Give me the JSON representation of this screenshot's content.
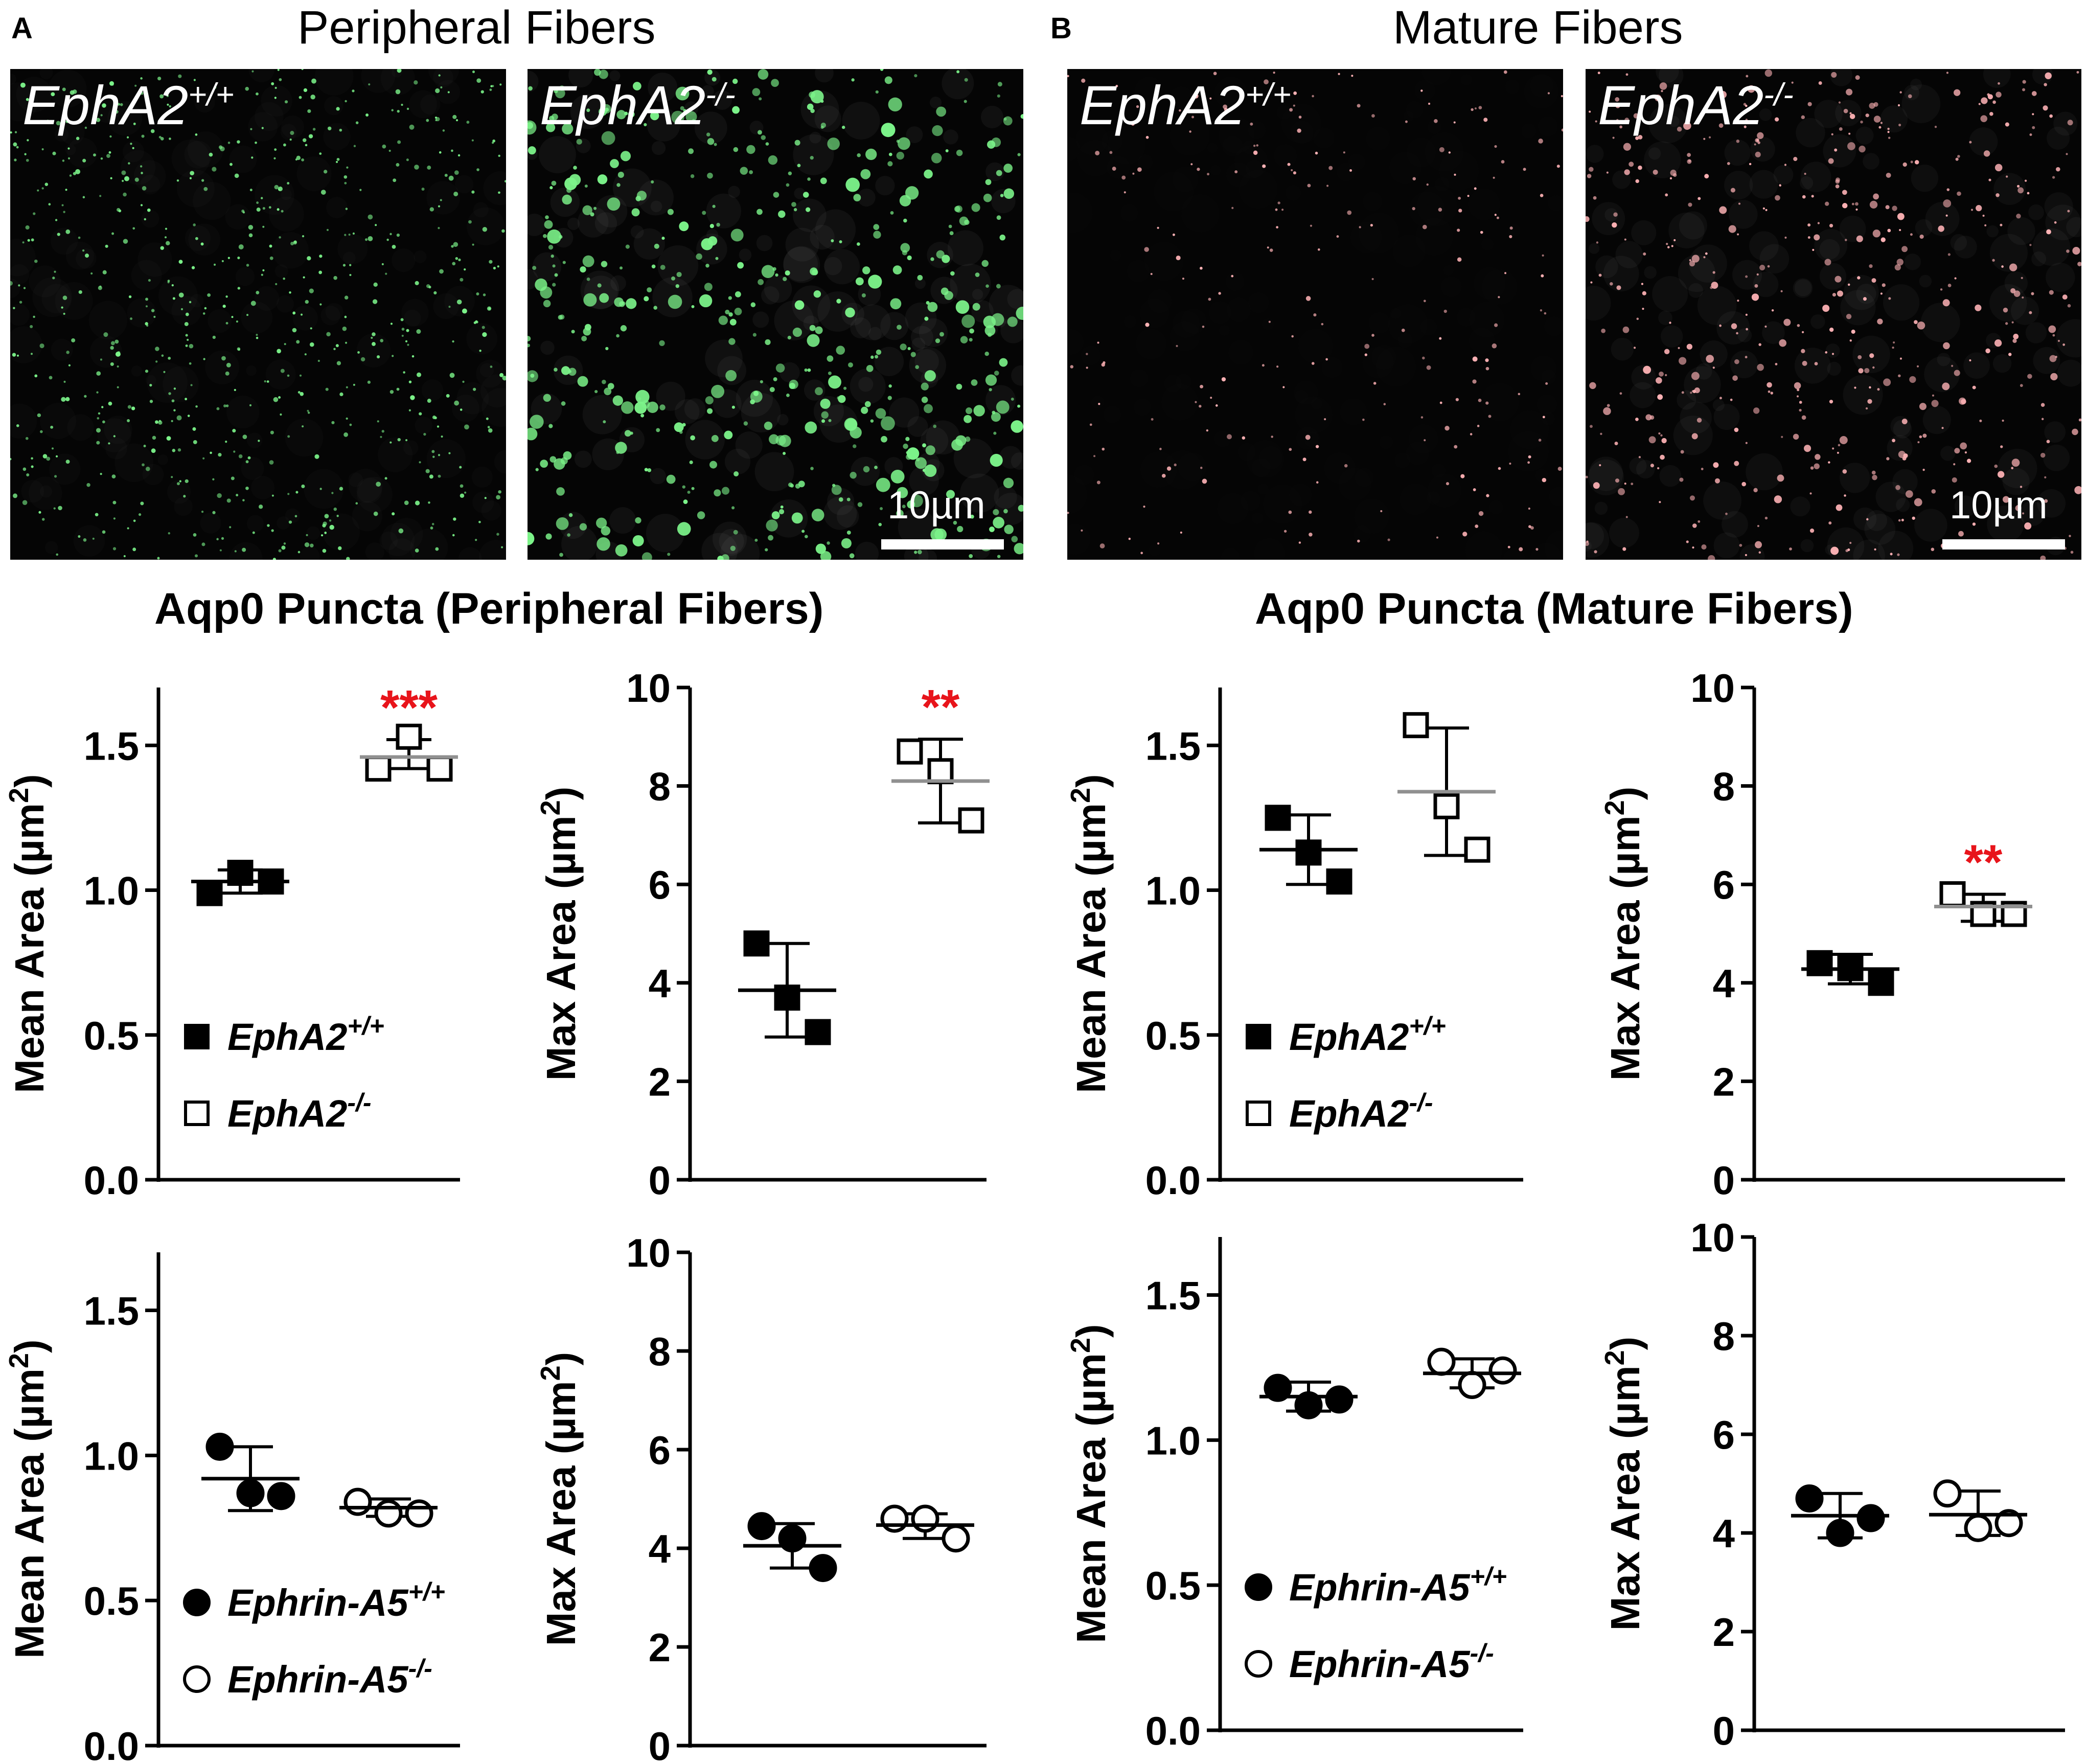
{
  "panel_A": {
    "letter": "A",
    "title": "Peripheral Fibers",
    "image_left": {
      "label": "EphA2",
      "label_sup": "+/+",
      "dot_color": "#7CF48A"
    },
    "image_right": {
      "label": "EphA2",
      "label_sup": "-/-",
      "dot_color": "#7CF48A",
      "scale_label": "10µm"
    },
    "section_title": "Aqp0 Puncta (Peripheral Fibers)"
  },
  "panel_B": {
    "letter": "B",
    "title": "Mature Fibers",
    "image_left": {
      "label": "EphA2",
      "label_sup": "+/+",
      "dot_color": "#FFB3B6"
    },
    "image_right": {
      "label": "EphA2",
      "label_sup": "-/-",
      "dot_color": "#FFB3B6",
      "scale_label": "10µm"
    },
    "section_title": "Aqp0 Puncta (Mature Fibers)"
  },
  "colors": {
    "significance": "#E8141B",
    "mean_gray": "#909090",
    "axis": "#000000"
  },
  "chart_data": [
    {
      "id": "A-EphA2-mean",
      "type": "scatter",
      "ylabel": "Mean Area (µm2)",
      "ylabel_main": "Mean Area (µm",
      "ylabel_sup": "2",
      "ylabel_end": ")",
      "ylim": [
        0,
        1.7
      ],
      "yticks": [
        0.0,
        0.5,
        1.0,
        1.5
      ],
      "tick_labels": [
        "0.0",
        "0.5",
        "1.0",
        "1.5"
      ],
      "legend": {
        "placement": "bottom-left",
        "entries": [
          {
            "marker": "filled-square",
            "name": "EphA2",
            "sup": "+/+"
          },
          {
            "marker": "open-square",
            "name": "EphA2",
            "sup": "-/-"
          }
        ]
      },
      "groups": [
        {
          "marker": "filled-square",
          "points": [
            0.99,
            1.06,
            1.03
          ],
          "mean": 1.03,
          "sd_low": 0.99,
          "sd_high": 1.07,
          "mean_color": "black"
        },
        {
          "marker": "open-square",
          "points": [
            1.42,
            1.53,
            1.42
          ],
          "mean": 1.46,
          "sd_low": 1.42,
          "sd_high": 1.52,
          "mean_color": "gray",
          "significance": "***"
        }
      ]
    },
    {
      "id": "A-EphA2-max",
      "type": "scatter",
      "ylabel": "Max Area (µm2)",
      "ylabel_main": "Max Area (µm",
      "ylabel_sup": "2",
      "ylabel_end": ")",
      "ylim": [
        0,
        10
      ],
      "yticks": [
        0,
        2,
        4,
        6,
        8,
        10
      ],
      "tick_labels": [
        "0",
        "2",
        "4",
        "6",
        "8",
        "10"
      ],
      "groups": [
        {
          "marker": "filled-square",
          "points": [
            4.8,
            3.7,
            3.0
          ],
          "mean": 3.85,
          "sd_low": 2.9,
          "sd_high": 4.8,
          "mean_color": "black"
        },
        {
          "marker": "open-square",
          "points": [
            8.7,
            8.3,
            7.3
          ],
          "mean": 8.1,
          "sd_low": 7.25,
          "sd_high": 8.95,
          "mean_color": "gray",
          "significance": "**"
        }
      ]
    },
    {
      "id": "B-EphA2-mean",
      "type": "scatter",
      "ylabel": "Mean Area (µm2)",
      "ylabel_main": "Mean Area (µm",
      "ylabel_sup": "2",
      "ylabel_end": ")",
      "ylim": [
        0,
        1.7
      ],
      "yticks": [
        0.0,
        0.5,
        1.0,
        1.5
      ],
      "tick_labels": [
        "0.0",
        "0.5",
        "1.0",
        "1.5"
      ],
      "legend": {
        "placement": "bottom-left",
        "entries": [
          {
            "marker": "filled-square",
            "name": "EphA2",
            "sup": "+/+"
          },
          {
            "marker": "open-square",
            "name": "EphA2",
            "sup": "-/-"
          }
        ]
      },
      "groups": [
        {
          "marker": "filled-square",
          "points": [
            1.25,
            1.13,
            1.03
          ],
          "mean": 1.14,
          "sd_low": 1.02,
          "sd_high": 1.26,
          "mean_color": "black"
        },
        {
          "marker": "open-square",
          "points": [
            1.57,
            1.29,
            1.14
          ],
          "mean": 1.34,
          "sd_low": 1.12,
          "sd_high": 1.56,
          "mean_color": "gray"
        }
      ]
    },
    {
      "id": "B-EphA2-max",
      "type": "scatter",
      "ylabel": "Max Area (µm2)",
      "ylabel_main": "Max Area (µm",
      "ylabel_sup": "2",
      "ylabel_end": ")",
      "ylim": [
        0,
        10
      ],
      "yticks": [
        0,
        2,
        4,
        6,
        8,
        10
      ],
      "tick_labels": [
        "0",
        "2",
        "4",
        "6",
        "8",
        "10"
      ],
      "groups": [
        {
          "marker": "filled-square",
          "points": [
            4.4,
            4.3,
            4.0
          ],
          "mean": 4.28,
          "sd_low": 3.98,
          "sd_high": 4.58,
          "mean_color": "black"
        },
        {
          "marker": "open-square",
          "points": [
            5.8,
            5.4,
            5.4
          ],
          "mean": 5.55,
          "sd_low": 5.25,
          "sd_high": 5.8,
          "mean_color": "gray",
          "significance": "**"
        }
      ]
    },
    {
      "id": "A-EphrinA5-mean",
      "type": "scatter",
      "ylabel": "Mean Area (µm2)",
      "ylabel_main": "Mean Area (µm",
      "ylabel_sup": "2",
      "ylabel_end": ")",
      "ylim": [
        0,
        1.7
      ],
      "yticks": [
        0.0,
        0.5,
        1.0,
        1.5
      ],
      "tick_labels": [
        "0.0",
        "0.5",
        "1.0",
        "1.5"
      ],
      "legend": {
        "placement": "bottom-left",
        "entries": [
          {
            "marker": "filled-circle",
            "name": "Ephrin-A5",
            "sup": "+/+"
          },
          {
            "marker": "open-circle",
            "name": "Ephrin-A5",
            "sup": "-/-"
          }
        ]
      },
      "groups": [
        {
          "marker": "filled-circle",
          "points": [
            1.03,
            0.87,
            0.86
          ],
          "mean": 0.92,
          "sd_low": 0.81,
          "sd_high": 1.03,
          "mean_color": "black"
        },
        {
          "marker": "open-circle",
          "points": [
            0.84,
            0.8,
            0.8
          ],
          "mean": 0.82,
          "sd_low": 0.79,
          "sd_high": 0.85,
          "mean_color": "black"
        }
      ]
    },
    {
      "id": "A-EphrinA5-max",
      "type": "scatter",
      "ylabel": "Max Area (µm2)",
      "ylabel_main": "Max Area (µm",
      "ylabel_sup": "2",
      "ylabel_end": ")",
      "ylim": [
        0,
        10
      ],
      "yticks": [
        0,
        2,
        4,
        6,
        8,
        10
      ],
      "tick_labels": [
        "0",
        "2",
        "4",
        "6",
        "8",
        "10"
      ],
      "groups": [
        {
          "marker": "filled-circle",
          "points": [
            4.45,
            4.2,
            3.6
          ],
          "mean": 4.05,
          "sd_low": 3.6,
          "sd_high": 4.5,
          "mean_color": "black"
        },
        {
          "marker": "open-circle",
          "points": [
            4.6,
            4.6,
            4.2
          ],
          "mean": 4.47,
          "sd_low": 4.2,
          "sd_high": 4.7,
          "mean_color": "black"
        }
      ]
    },
    {
      "id": "B-EphrinA5-mean",
      "type": "scatter",
      "ylabel": "Mean Area (µm2)",
      "ylabel_main": "Mean Area (µm",
      "ylabel_sup": "2",
      "ylabel_end": ")",
      "ylim": [
        0,
        1.7
      ],
      "yticks": [
        0.0,
        0.5,
        1.0,
        1.5
      ],
      "tick_labels": [
        "0.0",
        "0.5",
        "1.0",
        "1.5"
      ],
      "legend": {
        "placement": "bottom-left",
        "entries": [
          {
            "marker": "filled-circle",
            "name": "Ephrin-A5",
            "sup": "+/+"
          },
          {
            "marker": "open-circle",
            "name": "Ephrin-A5",
            "sup": "-/-"
          }
        ]
      },
      "groups": [
        {
          "marker": "filled-circle",
          "points": [
            1.18,
            1.12,
            1.14
          ],
          "mean": 1.15,
          "sd_low": 1.1,
          "sd_high": 1.2,
          "mean_color": "black"
        },
        {
          "marker": "open-circle",
          "points": [
            1.27,
            1.19,
            1.24
          ],
          "mean": 1.23,
          "sd_low": 1.18,
          "sd_high": 1.28,
          "mean_color": "black"
        }
      ]
    },
    {
      "id": "B-EphrinA5-max",
      "type": "scatter",
      "ylabel": "Max Area (µm2)",
      "ylabel_main": "Max Area (µm",
      "ylabel_sup": "2",
      "ylabel_end": ")",
      "ylim": [
        0,
        10
      ],
      "yticks": [
        0,
        2,
        4,
        6,
        8,
        10
      ],
      "tick_labels": [
        "0",
        "2",
        "4",
        "6",
        "8",
        "10"
      ],
      "groups": [
        {
          "marker": "filled-circle",
          "points": [
            4.7,
            4.0,
            4.3
          ],
          "mean": 4.35,
          "sd_low": 3.9,
          "sd_high": 4.8,
          "mean_color": "black"
        },
        {
          "marker": "open-circle",
          "points": [
            4.8,
            4.1,
            4.2
          ],
          "mean": 4.37,
          "sd_low": 3.95,
          "sd_high": 4.85,
          "mean_color": "black"
        }
      ]
    }
  ]
}
